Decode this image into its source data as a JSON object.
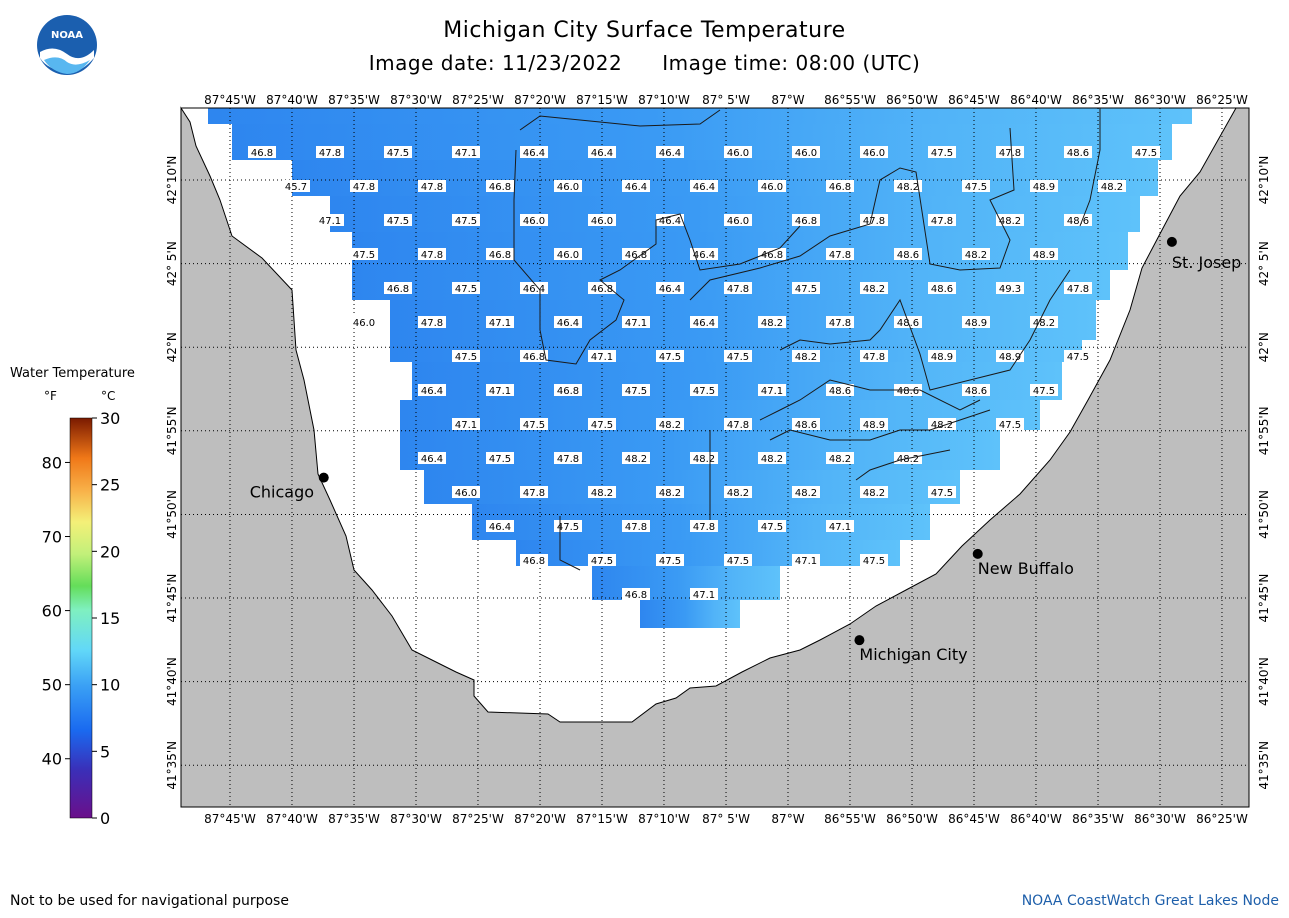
{
  "header": {
    "title": "Michigan City Surface Temperature",
    "image_date": "Image date: 11/23/2022",
    "image_time": "Image time: 08:00 (UTC)"
  },
  "logo": {
    "text": "NOAA",
    "icon": "noaa-logo"
  },
  "legend": {
    "title": "Water Temperature",
    "unit_f": "°F",
    "unit_c": "°C",
    "f_ticks": [
      {
        "label": "40",
        "value": 40
      },
      {
        "label": "50",
        "value": 50
      },
      {
        "label": "60",
        "value": 60
      },
      {
        "label": "70",
        "value": 70
      },
      {
        "label": "80",
        "value": 80
      }
    ],
    "c_ticks": [
      {
        "label": "0",
        "value": 0
      },
      {
        "label": "5",
        "value": 5
      },
      {
        "label": "10",
        "value": 10
      },
      {
        "label": "15",
        "value": 15
      },
      {
        "label": "20",
        "value": 20
      },
      {
        "label": "25",
        "value": 25
      },
      {
        "label": "30",
        "value": 30
      }
    ]
  },
  "map": {
    "lon_labels": [
      "87°45'W",
      "87°40'W",
      "87°35'W",
      "87°30'W",
      "87°25'W",
      "87°20'W",
      "87°15'W",
      "87°10'W",
      "87° 5'W",
      "87°W",
      "86°55'W",
      "86°50'W",
      "86°45'W",
      "86°40'W",
      "86°35'W",
      "86°30'W",
      "86°25'W"
    ],
    "lat_labels": [
      "42°10'N",
      "42° 5'N",
      "42°N",
      "41°55'N",
      "41°50'N",
      "41°45'N",
      "41°40'N",
      "41°35'N"
    ],
    "cities": [
      {
        "name": "Chicago",
        "lon": -87.624,
        "lat": 41.87
      },
      {
        "name": "St. Josep",
        "lon": -86.484,
        "lat": 42.105
      },
      {
        "name": "New Buffalo",
        "lon": -86.745,
        "lat": 41.794
      },
      {
        "name": "Michigan City",
        "lon": -86.904,
        "lat": 41.708
      }
    ],
    "temperature_rows": [
      [
        "46.8",
        "47.8",
        "47.5",
        "47.1",
        "46.4",
        "46.4",
        "46.4",
        "46.0",
        "46.0",
        "46.0",
        "47.5",
        "47.8",
        "48.6",
        "47.5"
      ],
      [
        "45.7",
        "47.8",
        "47.8",
        "46.8",
        "46.0",
        "46.4",
        "46.4",
        "46.0",
        "46.8",
        "48.2",
        "47.5",
        "48.9",
        "48.2"
      ],
      [
        "47.1",
        "47.5",
        "47.5",
        "46.0",
        "46.0",
        "46.4",
        "46.0",
        "46.8",
        "47.8",
        "47.8",
        "48.2",
        "48.6"
      ],
      [
        "47.5",
        "47.8",
        "46.8",
        "46.0",
        "46.8",
        "46.4",
        "46.8",
        "47.8",
        "48.6",
        "48.2",
        "48.9"
      ],
      [
        "46.8",
        "47.5",
        "46.4",
        "46.8",
        "46.4",
        "47.8",
        "47.5",
        "48.2",
        "48.6",
        "49.3",
        "47.8"
      ],
      [
        "46.0",
        "47.8",
        "47.1",
        "46.4",
        "47.1",
        "46.4",
        "48.2",
        "47.8",
        "48.6",
        "48.9",
        "48.2"
      ],
      [
        "47.5",
        "46.8",
        "47.1",
        "47.5",
        "47.5",
        "48.2",
        "47.8",
        "48.9",
        "48.9",
        "47.5"
      ],
      [
        "46.4",
        "47.1",
        "46.8",
        "47.5",
        "47.5",
        "47.1",
        "48.6",
        "48.6",
        "48.6",
        "47.5"
      ],
      [
        "47.1",
        "47.5",
        "47.5",
        "48.2",
        "47.8",
        "48.6",
        "48.9",
        "48.2",
        "47.5"
      ],
      [
        "46.4",
        "47.5",
        "47.8",
        "48.2",
        "48.2",
        "48.2",
        "48.2",
        "48.2"
      ],
      [
        "46.0",
        "47.8",
        "48.2",
        "48.2",
        "48.2",
        "48.2",
        "48.2",
        "47.5"
      ],
      [
        "46.4",
        "47.5",
        "47.8",
        "47.8",
        "47.5",
        "47.1"
      ],
      [
        "46.8",
        "47.5",
        "47.5",
        "47.5",
        "47.1",
        "47.5"
      ],
      [
        "46.8",
        "47.1"
      ]
    ]
  },
  "footer": {
    "disclaimer": "Not to be used for navigational purpose",
    "credit": "NOAA CoastWatch Great Lakes Node"
  },
  "colors": {
    "land": "#bebebe",
    "water_nodata": "#ffffff",
    "water_cold": "#2e8af0",
    "water_warm": "#5ec2fa"
  }
}
